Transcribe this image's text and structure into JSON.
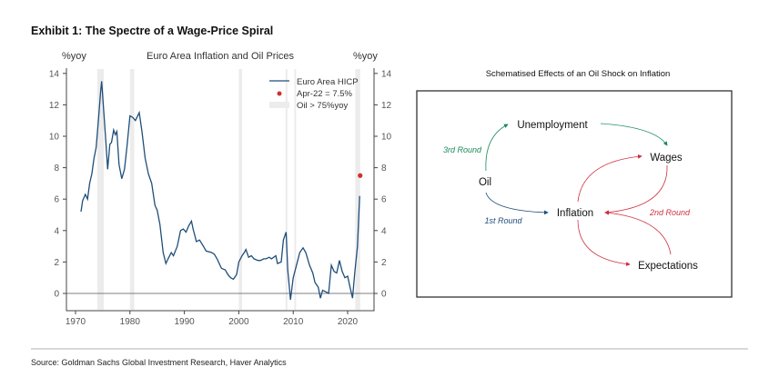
{
  "exhibit_title": "Exhibit 1: The Spectre of a Wage-Price Spiral",
  "source": "Source: Goldman Sachs Global Investment Research, Haver Analytics",
  "chart_data": {
    "type": "line",
    "title": "Euro Area Inflation and Oil Prices",
    "ylabel_left": "%yoy",
    "ylabel_right": "%yoy",
    "xlim": [
      1968.5,
      2024.8
    ],
    "ylim": [
      -1,
      14.5
    ],
    "xticks": [
      1970,
      1980,
      1990,
      2000,
      2010,
      2020
    ],
    "yticks": [
      0,
      2,
      4,
      6,
      8,
      10,
      12,
      14
    ],
    "legend": {
      "position": "top-right",
      "entries": [
        "Euro Area HICP",
        "Apr-22 = 7.5%",
        "Oil > 75%yoy"
      ]
    },
    "series": [
      {
        "name": "Euro Area HICP",
        "color": "#1f4e79",
        "x": [
          1971,
          1971.3,
          1971.8,
          1972.2,
          1972.6,
          1973,
          1973.4,
          1973.8,
          1974.2,
          1974.6,
          1974.8,
          1975.2,
          1975.6,
          1975.9,
          1976.3,
          1976.6,
          1977,
          1977.3,
          1977.6,
          1978,
          1978.5,
          1979,
          1979.5,
          1980,
          1980.5,
          1981,
          1981.7,
          1982.2,
          1982.8,
          1983.4,
          1984,
          1984.6,
          1985,
          1985.5,
          1986.1,
          1986.6,
          1987,
          1987.6,
          1988,
          1988.7,
          1989.3,
          1989.8,
          1990.3,
          1990.8,
          1991.3,
          1991.6,
          1992.2,
          1992.8,
          1993.5,
          1994,
          1995,
          1995.5,
          1996,
          1996.8,
          1997.5,
          1998,
          1998.5,
          1999,
          1999.6,
          2000,
          2000.6,
          2001,
          2001.3,
          2001.8,
          2002.3,
          2002.8,
          2003.5,
          2004,
          2004.6,
          2005,
          2005.6,
          2006,
          2006.8,
          2007.1,
          2007.8,
          2008.2,
          2008.7,
          2009,
          2009.5,
          2010,
          2010.6,
          2011.2,
          2011.8,
          2012.3,
          2013,
          2013.6,
          2014,
          2014.6,
          2015,
          2015.4,
          2016,
          2016.5,
          2017,
          2017.5,
          2018,
          2018.5,
          2019,
          2019.5,
          2020,
          2020.5,
          2020.9,
          2021.3,
          2021.8,
          2022.2
        ],
        "y": [
          5.2,
          5.9,
          6.3,
          6.0,
          7.0,
          7.6,
          8.6,
          9.3,
          11,
          12.8,
          13.5,
          11.5,
          9.5,
          7.9,
          9.5,
          9.6,
          10.4,
          10.1,
          10.3,
          8.2,
          7.3,
          7.9,
          9.5,
          11.3,
          11.2,
          11.0,
          11.5,
          10.3,
          8.6,
          7.6,
          7.0,
          5.6,
          5.3,
          4.4,
          2.6,
          1.9,
          2.2,
          2.6,
          2.4,
          3.0,
          4.0,
          4.1,
          3.9,
          4.3,
          4.6,
          4.1,
          3.3,
          3.4,
          3.0,
          2.7,
          2.6,
          2.5,
          2.2,
          1.6,
          1.5,
          1.2,
          1.0,
          0.9,
          1.2,
          2.0,
          2.4,
          2.6,
          2.8,
          2.3,
          2.4,
          2.2,
          2.1,
          2.1,
          2.2,
          2.2,
          2.3,
          2.2,
          2.4,
          1.9,
          2.0,
          3.4,
          3.9,
          1.5,
          -0.4,
          1.0,
          1.8,
          2.6,
          2.9,
          2.6,
          1.8,
          1.3,
          0.7,
          0.4,
          -0.3,
          0.2,
          0.1,
          0.0,
          1.8,
          1.4,
          1.3,
          2.1,
          1.4,
          1.0,
          1.1,
          0.3,
          -0.3,
          1.3,
          3.0,
          6.2
        ]
      }
    ],
    "point": {
      "name": "Apr-22 = 7.5%",
      "x": 2022.3,
      "y": 7.5,
      "color": "#d03030"
    },
    "shaded_periods": [
      [
        1974.0,
        1975.2
      ],
      [
        1980.0,
        1980.8
      ],
      [
        2000.0,
        2000.6
      ],
      [
        2008.6,
        2008.9
      ],
      [
        2010.2,
        2010.5
      ],
      [
        2021.4,
        2022.3
      ]
    ]
  },
  "diagram": {
    "title": "Schematised Effects of an Oil Shock on Inflation",
    "nodes": {
      "unemployment": "Unemployment",
      "wages": "Wages",
      "oil": "Oil",
      "inflation": "Inflation",
      "expectations": "Expectations"
    },
    "rounds": {
      "first": "1st Round",
      "second": "2nd Round",
      "third": "3rd Round"
    },
    "colors": {
      "first": "#1f4e79",
      "second": "#d03040",
      "third": "#1a8a5a"
    }
  }
}
